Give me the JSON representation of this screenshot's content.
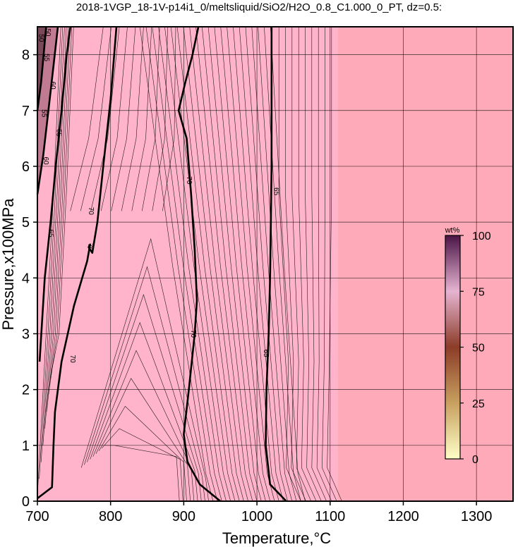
{
  "chart_data": {
    "type": "contour",
    "title": "2018-1VGP_18-1V-p14i1_0/meltsliquid/SiO2/H2O_0.8_C1.000_0_PT, dz=0.5:",
    "xlabel": "Temperature,°C",
    "ylabel": "Pressure,x100MPa",
    "xlim": [
      700,
      1350
    ],
    "ylim": [
      0,
      8.5
    ],
    "x_ticks": [
      "700",
      "800",
      "900",
      "1000",
      "1100",
      "1200",
      "1300"
    ],
    "y_ticks": [
      "0",
      "1",
      "2",
      "3",
      "4",
      "5",
      "6",
      "7",
      "8"
    ],
    "grid": true,
    "colorbar": {
      "unit": "wt%",
      "range": [
        0,
        100
      ],
      "ticks": [
        "0",
        "25",
        "50",
        "75",
        "100"
      ],
      "colors": [
        "#ffffc8",
        "#c8a060",
        "#8c3c28",
        "#e6b4d2",
        "#4a1446"
      ],
      "placement": "right, inside plot"
    },
    "background_colors": {
      "low_temperature_field": "#ffb4cc",
      "high_temperature_field": "#ffaab8"
    },
    "labeled_contours": [
      {
        "level": 70,
        "points": [
          [
            700,
            0.05
          ],
          [
            720,
            0.25
          ],
          [
            722,
            1.0
          ],
          [
            724,
            1.6
          ],
          [
            733,
            2.5
          ],
          [
            750,
            3.5
          ],
          [
            768,
            4.3
          ],
          [
            772,
            4.6
          ],
          [
            770,
            4.55
          ],
          [
            775,
            4.45
          ],
          [
            782,
            5.0
          ],
          [
            790,
            6.0
          ],
          [
            800,
            7.2
          ],
          [
            808,
            8.5
          ]
        ]
      },
      {
        "level": 70,
        "points": [
          [
            950,
            0.0
          ],
          [
            922,
            0.3
          ],
          [
            905,
            0.7
          ],
          [
            900,
            1.2
          ],
          [
            907,
            2.0
          ],
          [
            915,
            3.0
          ],
          [
            918,
            3.6
          ],
          [
            915,
            4.5
          ],
          [
            910,
            5.5
          ],
          [
            904,
            6.5
          ],
          [
            893,
            7.0
          ],
          [
            902,
            7.5
          ],
          [
            912,
            8.0
          ],
          [
            920,
            8.5
          ]
        ]
      },
      {
        "level": 65,
        "points": [
          [
            1040,
            0.0
          ],
          [
            1018,
            0.3
          ],
          [
            1012,
            1.0
          ],
          [
            1013,
            2.0
          ],
          [
            1016,
            3.0
          ],
          [
            1018,
            4.0
          ],
          [
            1019,
            5.0
          ],
          [
            1020,
            6.0
          ],
          [
            1020,
            7.0
          ],
          [
            1020,
            8.5
          ]
        ]
      },
      {
        "level": 65,
        "points": [
          [
            703,
            2.5
          ],
          [
            710,
            4.0
          ],
          [
            718,
            5.0
          ],
          [
            725,
            6.0
          ],
          [
            733,
            7.0
          ],
          [
            740,
            8.0
          ],
          [
            745,
            8.5
          ]
        ]
      },
      {
        "level": 60,
        "points": [
          [
            700,
            5.5
          ],
          [
            708,
            6.2
          ],
          [
            715,
            7.0
          ],
          [
            722,
            7.8
          ],
          [
            728,
            8.5
          ]
        ]
      },
      {
        "level": 55,
        "points": [
          [
            700,
            7.0
          ],
          [
            705,
            7.5
          ],
          [
            712,
            8.5
          ]
        ]
      }
    ],
    "contour_labels": [
      {
        "text": "70",
        "x": 748,
        "y": 2.55
      },
      {
        "text": "70",
        "x": 773,
        "y": 5.2
      },
      {
        "text": "70",
        "x": 772,
        "y": 4.55
      },
      {
        "text": "70",
        "x": 913,
        "y": 3.0
      },
      {
        "text": "70",
        "x": 907,
        "y": 5.75
      },
      {
        "text": "65",
        "x": 1012,
        "y": 2.65
      },
      {
        "text": "65",
        "x": 1026,
        "y": 5.55
      },
      {
        "text": "65",
        "x": 718,
        "y": 4.8
      },
      {
        "text": "65",
        "x": 729,
        "y": 6.6
      },
      {
        "text": "60",
        "x": 711,
        "y": 6.1
      },
      {
        "text": "60",
        "x": 721,
        "y": 7.45
      },
      {
        "text": "55",
        "x": 709,
        "y": 6.95
      },
      {
        "text": "55",
        "x": 712,
        "y": 7.95
      },
      {
        "text": "50",
        "x": 705,
        "y": 8.3
      },
      {
        "text": "50",
        "x": 714,
        "y": 8.4
      }
    ]
  }
}
